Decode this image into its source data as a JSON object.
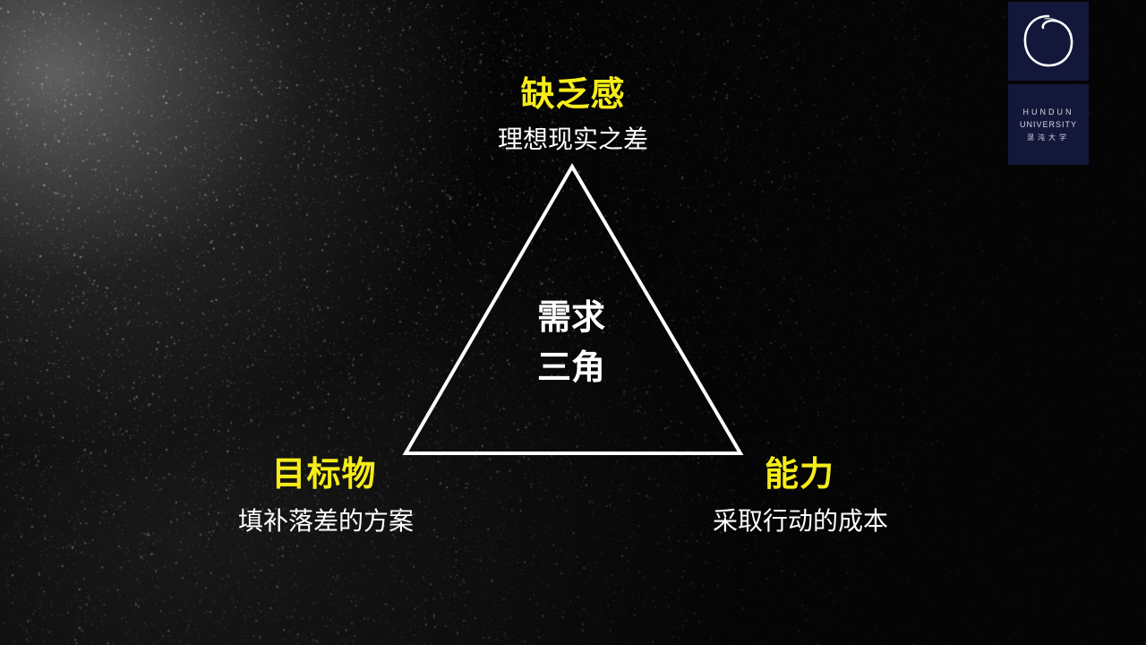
{
  "colors": {
    "accent": "#f5ec1a",
    "text": "#ffffff",
    "logo_bg": "#13183a"
  },
  "diagram": {
    "top": {
      "title": "缺乏感",
      "subtitle": "理想现实之差"
    },
    "left": {
      "title": "目标物",
      "subtitle": "填补落差的方案"
    },
    "right": {
      "title": "能力",
      "subtitle": "采取行动的成本"
    },
    "center": {
      "line1": "需求",
      "line2": "三角"
    }
  },
  "logo": {
    "icon": "ring-icon",
    "line1": "HUNDUN",
    "line2": "UNIVERSITY",
    "line3": "混沌大学"
  }
}
